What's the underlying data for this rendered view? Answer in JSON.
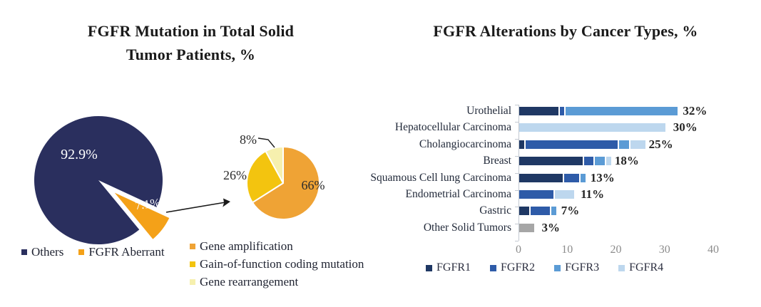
{
  "left_chart": {
    "title_lines": [
      "FGFR Mutation in Total Solid",
      "Tumor Patients, %"
    ],
    "legend": [
      {
        "label": "Others",
        "color": "#2A2F5E"
      },
      {
        "label": "FGFR Aberrant",
        "color": "#F4A118"
      }
    ],
    "sub_legend": [
      {
        "label": "Gene amplification",
        "color": "#EFA335"
      },
      {
        "label": "Gain-of-function coding mutation",
        "color": "#F3C40F"
      },
      {
        "label": "Gene rearrangement",
        "color": "#F6F0AE"
      }
    ]
  },
  "right_chart": {
    "title": "FGFR Alterations by Cancer Types, %",
    "legend": [
      {
        "label": "FGFR1",
        "color": "#1F3864"
      },
      {
        "label": "FGFR2",
        "color": "#2E5BA8"
      },
      {
        "label": "FGFR3",
        "color": "#5B9BD5"
      },
      {
        "label": "FGFR4",
        "color": "#BDD7EE"
      }
    ],
    "x_tick_labels": [
      "0",
      "10",
      "20",
      "30",
      "40"
    ]
  },
  "chart_data": [
    {
      "type": "pie",
      "name": "fgfr-mutation-in-total-solid-tumor-patients",
      "title": "FGFR Mutation in Total Solid Tumor Patients, %",
      "labels": [
        "Others",
        "FGFR Aberrant"
      ],
      "values": [
        92.9,
        7.1
      ],
      "value_labels": [
        "92.9%",
        "7.1%"
      ],
      "colors": [
        "#2A2F5E",
        "#F4A118"
      ],
      "exploded_slice": "FGFR Aberrant",
      "explode_direction_deg_cw_from_top": 127.7
    },
    {
      "type": "pie",
      "name": "fgfr-aberrant-breakdown",
      "labels": [
        "Gene amplification",
        "Gain-of-function coding mutation",
        "Gene rearrangement"
      ],
      "values": [
        66,
        26,
        8
      ],
      "value_labels": [
        "66%",
        "26%",
        "8%"
      ],
      "colors": [
        "#EFA335",
        "#F3C40F",
        "#F6F0AE"
      ]
    },
    {
      "type": "bar",
      "name": "fgfr-alterations-by-cancer-types",
      "title": "FGFR Alterations by Cancer Types, %",
      "orientation": "horizontal",
      "stacked": true,
      "xlim": [
        0,
        40
      ],
      "x_ticks": [
        0,
        10,
        20,
        30,
        40
      ],
      "legend": [
        "FGFR1",
        "FGFR2",
        "FGFR3",
        "FGFR4"
      ],
      "series_colors": {
        "FGFR1": "#1F3864",
        "FGFR2": "#2E5BA8",
        "FGFR3": "#5B9BD5",
        "FGFR4": "#BDD7EE",
        "unlabeled-gray": "#A6A6A6"
      },
      "bars": [
        {
          "category": "Urothelial",
          "total": 32,
          "total_label": "32%",
          "segments": [
            {
              "series": "FGFR1",
              "value": 8
            },
            {
              "series": "FGFR2",
              "value": 1
            },
            {
              "series": "FGFR3",
              "value": 23
            }
          ]
        },
        {
          "category": "Hepatocellular Carcinoma",
          "total": 30,
          "total_label": "30%",
          "segments": [
            {
              "series": "FGFR4",
              "value": 30
            }
          ]
        },
        {
          "category": "Cholangiocarcinoma",
          "total": 25,
          "total_label": "25%",
          "segments": [
            {
              "series": "FGFR1",
              "value": 1
            },
            {
              "series": "FGFR2",
              "value": 19
            },
            {
              "series": "FGFR3",
              "value": 2
            },
            {
              "series": "FGFR4",
              "value": 3
            }
          ]
        },
        {
          "category": "Breast",
          "total": 18,
          "total_label": "18%",
          "segments": [
            {
              "series": "FGFR1",
              "value": 13
            },
            {
              "series": "FGFR2",
              "value": 2
            },
            {
              "series": "FGFR3",
              "value": 2
            },
            {
              "series": "FGFR4",
              "value": 1
            }
          ]
        },
        {
          "category": "Squamous Cell lung Carcinoma",
          "total": 13,
          "total_label": "13%",
          "segments": [
            {
              "series": "FGFR1",
              "value": 9
            },
            {
              "series": "FGFR2",
              "value": 3
            },
            {
              "series": "FGFR3",
              "value": 1
            }
          ]
        },
        {
          "category": "Endometrial Carcinoma",
          "total": 11,
          "total_label": "11%",
          "segments": [
            {
              "series": "FGFR2",
              "value": 7
            },
            {
              "series": "FGFR4",
              "value": 4
            }
          ]
        },
        {
          "category": "Gastric",
          "total": 7,
          "total_label": "7%",
          "segments": [
            {
              "series": "FGFR1",
              "value": 2
            },
            {
              "series": "FGFR2",
              "value": 4
            },
            {
              "series": "FGFR3",
              "value": 1
            }
          ]
        },
        {
          "category": "Other Solid Tumors",
          "total": 3,
          "total_label": "3%",
          "segments": [
            {
              "series": "unlabeled-gray",
              "value": 3
            }
          ]
        }
      ]
    }
  ]
}
